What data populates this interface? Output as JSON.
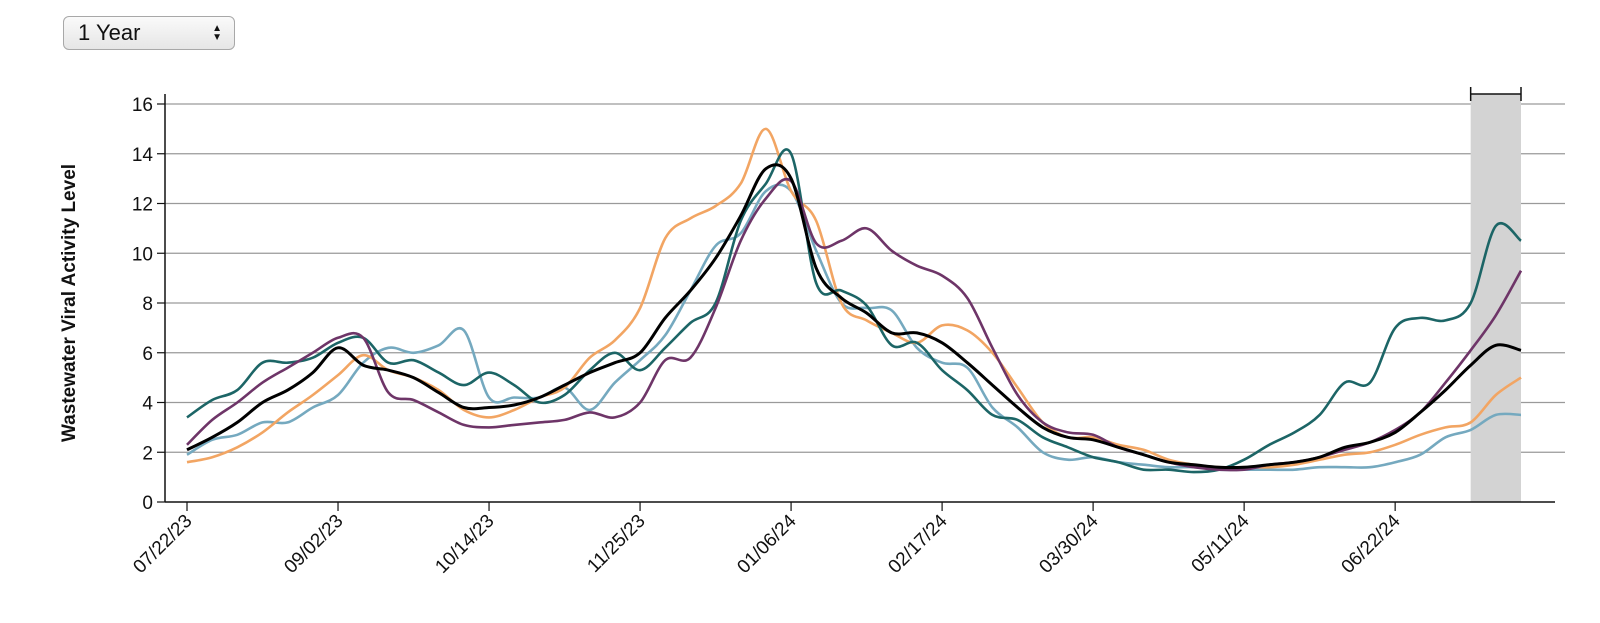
{
  "controls": {
    "range_select": {
      "value": "1 Year"
    }
  },
  "chart_data": {
    "type": "line",
    "ylabel": "Wastewater Viral Activity Level",
    "ylim": [
      0,
      16
    ],
    "yticks": [
      0,
      2,
      4,
      6,
      8,
      10,
      12,
      14,
      16
    ],
    "grid": true,
    "xlim": [
      "07/22/23",
      "07/27/24"
    ],
    "x_tick_labels": [
      "07/22/23",
      "09/02/23",
      "10/14/23",
      "11/25/23",
      "01/06/24",
      "02/17/24",
      "03/30/24",
      "05/11/24",
      "06/22/24"
    ],
    "highlight_range": [
      "07/13/24",
      "07/27/24"
    ],
    "colors": {
      "national": "#000000",
      "midwest": "#6e3568",
      "south": "#f2a563",
      "northeast": "#75a9bf",
      "west": "#1c6566",
      "highlight": "#d3d3d3"
    },
    "x": [
      "07/22/23",
      "07/29/23",
      "08/05/23",
      "08/12/23",
      "08/19/23",
      "08/26/23",
      "09/02/23",
      "09/09/23",
      "09/16/23",
      "09/23/23",
      "09/30/23",
      "10/07/23",
      "10/14/23",
      "10/21/23",
      "10/28/23",
      "11/04/23",
      "11/11/23",
      "11/18/23",
      "11/25/23",
      "12/02/23",
      "12/09/23",
      "12/16/23",
      "12/23/23",
      "12/30/23",
      "01/06/24",
      "01/13/24",
      "01/20/24",
      "01/27/24",
      "02/03/24",
      "02/10/24",
      "02/17/24",
      "02/24/24",
      "03/02/24",
      "03/09/24",
      "03/16/24",
      "03/23/24",
      "03/30/24",
      "04/06/24",
      "04/13/24",
      "04/20/24",
      "04/27/24",
      "05/04/24",
      "05/11/24",
      "05/18/24",
      "05/25/24",
      "06/01/24",
      "06/08/24",
      "06/15/24",
      "06/22/24",
      "06/29/24",
      "07/06/24",
      "07/13/24",
      "07/20/24",
      "07/27/24"
    ],
    "series": [
      {
        "color": "#000000",
        "values": [
          2.1,
          2.6,
          3.2,
          4.0,
          4.5,
          5.2,
          6.2,
          5.5,
          5.3,
          5.0,
          4.4,
          3.8,
          3.8,
          3.9,
          4.2,
          4.7,
          5.2,
          5.6,
          6.0,
          7.4,
          8.5,
          9.8,
          11.5,
          13.4,
          13.0,
          9.4,
          8.2,
          7.6,
          6.8,
          6.8,
          6.4,
          5.6,
          4.7,
          3.8,
          3.0,
          2.6,
          2.5,
          2.2,
          1.9,
          1.6,
          1.5,
          1.4,
          1.4,
          1.5,
          1.6,
          1.8,
          2.2,
          2.4,
          2.8,
          3.6,
          4.5,
          5.5,
          6.3,
          6.1
        ]
      },
      {
        "color": "#6e3568",
        "values": [
          2.3,
          3.3,
          4.0,
          4.8,
          5.4,
          6.0,
          6.6,
          6.6,
          4.4,
          4.1,
          3.6,
          3.1,
          3.0,
          3.1,
          3.2,
          3.3,
          3.6,
          3.4,
          4.0,
          5.7,
          5.8,
          7.8,
          10.5,
          12.2,
          12.9,
          10.4,
          10.5,
          11.0,
          10.1,
          9.5,
          9.1,
          8.2,
          6.2,
          4.3,
          3.2,
          2.8,
          2.7,
          2.2,
          1.9,
          1.6,
          1.4,
          1.3,
          1.3,
          1.5,
          1.6,
          1.8,
          2.1,
          2.4,
          2.9,
          3.6,
          4.8,
          6.1,
          7.5,
          9.3
        ]
      },
      {
        "color": "#f2a563",
        "values": [
          1.6,
          1.8,
          2.2,
          2.8,
          3.6,
          4.3,
          5.1,
          5.9,
          5.3,
          5.0,
          4.5,
          3.7,
          3.4,
          3.7,
          4.2,
          4.6,
          5.8,
          6.5,
          7.8,
          10.6,
          11.4,
          11.9,
          12.8,
          15.0,
          12.5,
          11.3,
          8.0,
          7.3,
          6.8,
          6.4,
          7.1,
          6.9,
          6.0,
          4.6,
          3.2,
          2.6,
          2.6,
          2.3,
          2.1,
          1.7,
          1.5,
          1.4,
          1.4,
          1.4,
          1.5,
          1.7,
          1.9,
          2.0,
          2.3,
          2.7,
          3.0,
          3.2,
          4.3,
          5.0
        ]
      },
      {
        "color": "#75a9bf",
        "values": [
          1.9,
          2.5,
          2.7,
          3.2,
          3.2,
          3.8,
          4.3,
          5.6,
          6.2,
          6.0,
          6.3,
          6.9,
          4.2,
          4.2,
          4.2,
          4.6,
          3.7,
          4.8,
          5.7,
          6.7,
          8.5,
          10.3,
          10.8,
          12.5,
          12.5,
          10.1,
          8.0,
          7.8,
          7.7,
          6.2,
          5.6,
          5.4,
          3.8,
          3.0,
          2.0,
          1.7,
          1.8,
          1.6,
          1.5,
          1.4,
          1.4,
          1.3,
          1.3,
          1.3,
          1.3,
          1.4,
          1.4,
          1.4,
          1.6,
          1.9,
          2.6,
          2.9,
          3.5,
          3.5
        ]
      },
      {
        "color": "#1c6566",
        "values": [
          3.4,
          4.1,
          4.5,
          5.6,
          5.6,
          5.8,
          6.4,
          6.6,
          5.6,
          5.7,
          5.2,
          4.7,
          5.2,
          4.7,
          4.0,
          4.3,
          5.3,
          6.0,
          5.3,
          6.2,
          7.2,
          8.0,
          11.3,
          12.8,
          14.0,
          8.8,
          8.5,
          7.9,
          6.3,
          6.4,
          5.3,
          4.5,
          3.5,
          3.3,
          2.6,
          2.2,
          1.8,
          1.6,
          1.3,
          1.3,
          1.2,
          1.3,
          1.7,
          2.3,
          2.8,
          3.5,
          4.8,
          4.8,
          7.0,
          7.4,
          7.3,
          8.0,
          11.1,
          10.5
        ]
      }
    ]
  }
}
